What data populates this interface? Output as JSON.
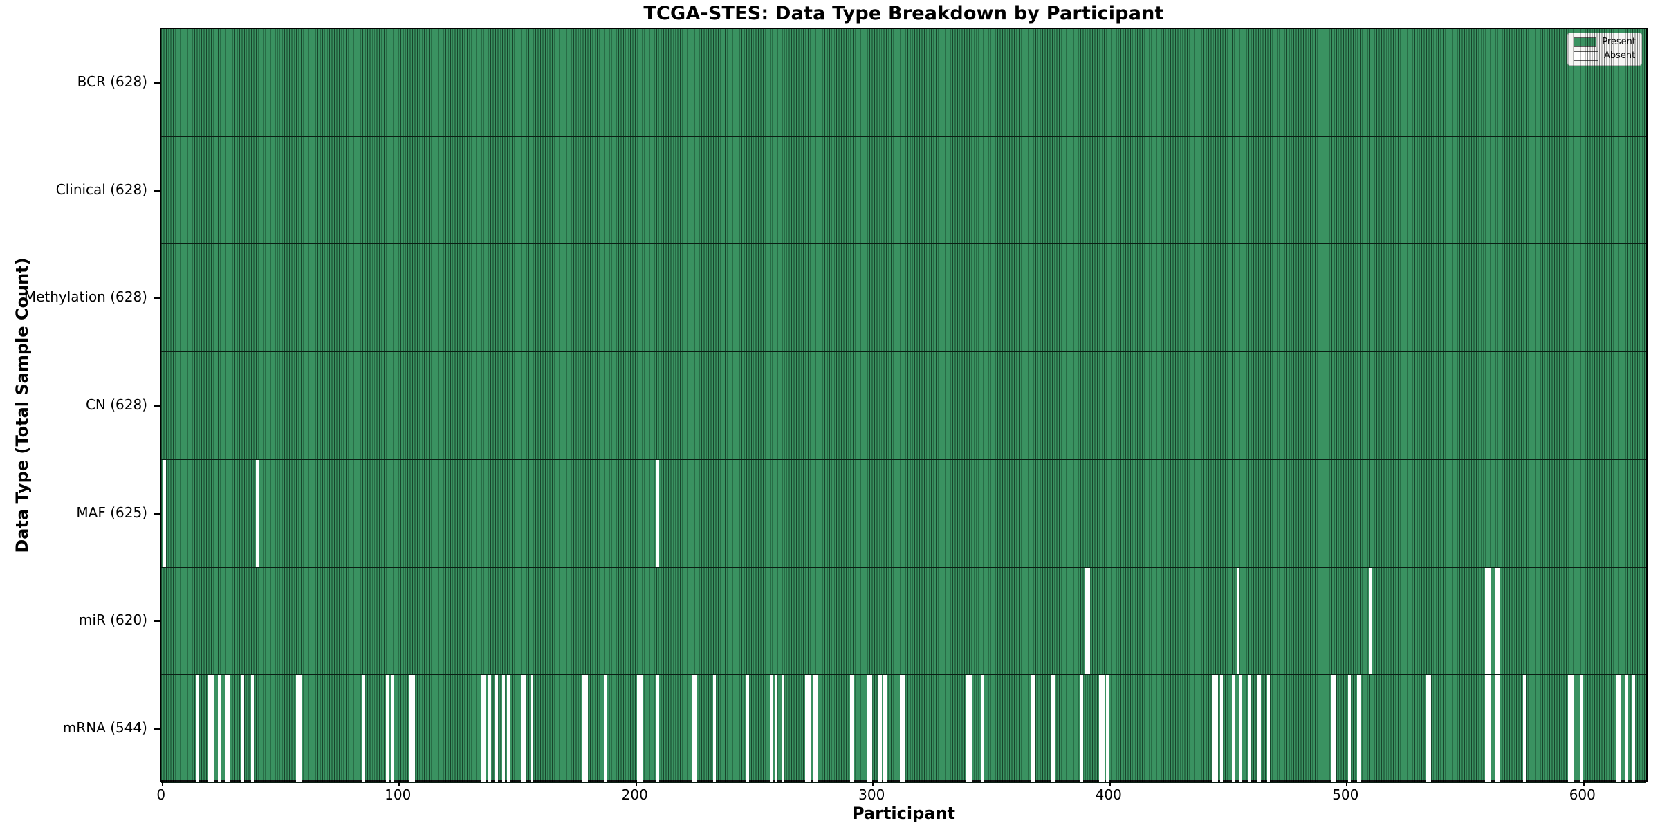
{
  "chart_data": {
    "type": "heatmap",
    "title": "TCGA-STES: Data Type Breakdown by Participant",
    "xlabel": "Participant",
    "ylabel": "Data Type (Total Sample Count)",
    "n_participants": 628,
    "x_ticks": [
      0,
      100,
      200,
      300,
      400,
      500,
      600
    ],
    "grid": false,
    "legend_position": "upper right",
    "colors": {
      "present": "#2e8b57",
      "absent": "#ffffff",
      "bar_edge": "#000000",
      "legend_background": "#f5f5f3"
    },
    "legend": [
      {
        "label": "Present",
        "color": "#2e8b57"
      },
      {
        "label": "Absent",
        "color": "#ffffff"
      }
    ],
    "rows": [
      {
        "label": "BCR",
        "count": 628,
        "absent": []
      },
      {
        "label": "Clinical",
        "count": 628,
        "absent": []
      },
      {
        "label": "Methylation",
        "count": 628,
        "absent": []
      },
      {
        "label": "CN",
        "count": 628,
        "absent": []
      },
      {
        "label": "MAF",
        "count": 625,
        "absent": [
          1,
          40,
          209
        ]
      },
      {
        "label": "miR",
        "count": 620,
        "absent": [
          390,
          391,
          454,
          510,
          559,
          560,
          563,
          564
        ]
      },
      {
        "label": "mRNA",
        "count": 544,
        "absent": [
          15,
          20,
          21,
          24,
          27,
          28,
          34,
          38,
          57,
          58,
          85,
          95,
          97,
          105,
          106,
          135,
          136,
          138,
          141,
          144,
          146,
          152,
          153,
          156,
          178,
          179,
          187,
          201,
          202,
          209,
          224,
          225,
          233,
          247,
          257,
          259,
          262,
          272,
          273,
          275,
          276,
          291,
          298,
          299,
          303,
          305,
          312,
          313,
          340,
          341,
          346,
          367,
          368,
          376,
          388,
          396,
          397,
          399,
          444,
          445,
          447,
          452,
          455,
          459,
          463,
          467,
          494,
          495,
          501,
          505,
          534,
          535,
          559,
          560,
          563,
          564,
          575,
          594,
          595,
          599,
          614,
          615,
          618,
          621
        ]
      }
    ]
  }
}
